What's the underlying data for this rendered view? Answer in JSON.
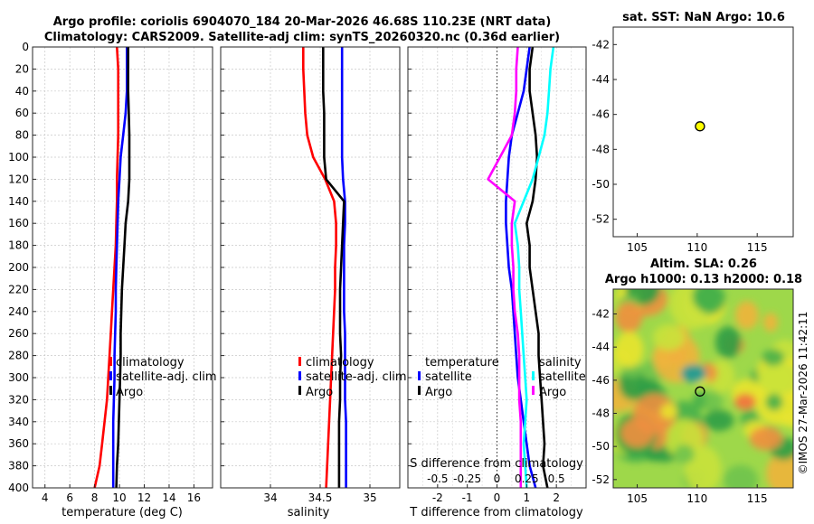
{
  "title_line1": "Argo profile: coriolis 6904070_184 20-Mar-2026 46.68S 110.23E (NRT data)",
  "title_line2": "Climatology: CARS2009. Satellite-adj clim: synTS_20260320.nc (0.36d earlier)",
  "watermark": "©IMOS 27-Mar-2026 11:42:11",
  "colors": {
    "clim": "#ff0000",
    "sat": "#0000ff",
    "argo": "#000000",
    "salt_diff": "#ff00ff",
    "salt_sat": "#00ffff"
  },
  "chart_data": [
    {
      "id": "temperature",
      "type": "line",
      "xlabel": "temperature (deg C)",
      "ylabel": "",
      "xlim": [
        3,
        17.5
      ],
      "ylim": [
        400,
        0
      ],
      "xticks": [
        4,
        6,
        8,
        10,
        12,
        14,
        16
      ],
      "yticks": [
        0,
        20,
        40,
        60,
        80,
        100,
        120,
        140,
        160,
        180,
        200,
        220,
        240,
        260,
        280,
        300,
        320,
        340,
        360,
        380,
        400
      ],
      "grid": true,
      "legend": [
        "climatology",
        "satellite-adj. clim",
        "Argo"
      ],
      "series": [
        {
          "name": "climatology",
          "color": "#ff0000",
          "x": [
            9.8,
            9.9,
            9.9,
            9.9,
            9.9,
            9.85,
            9.8,
            9.8,
            9.75,
            9.7,
            9.6,
            9.5,
            9.4,
            9.3,
            9.2,
            9.1,
            9.0,
            8.8,
            8.6,
            8.4,
            8.0
          ],
          "y": [
            0,
            20,
            40,
            60,
            80,
            100,
            120,
            140,
            160,
            180,
            200,
            220,
            240,
            260,
            280,
            300,
            320,
            340,
            360,
            380,
            400
          ]
        },
        {
          "name": "satellite-adj. clim",
          "color": "#0000ff",
          "x": [
            10.6,
            10.6,
            10.6,
            10.5,
            10.3,
            10.1,
            10.0,
            9.9,
            9.85,
            9.8,
            9.75,
            9.7,
            9.7,
            9.65,
            9.6,
            9.6,
            9.55,
            9.5,
            9.5,
            9.5,
            9.5
          ],
          "y": [
            0,
            20,
            40,
            60,
            80,
            100,
            120,
            140,
            160,
            180,
            200,
            220,
            240,
            260,
            280,
            300,
            320,
            340,
            360,
            380,
            400
          ]
        },
        {
          "name": "Argo",
          "color": "#000000",
          "x": [
            10.7,
            10.7,
            10.7,
            10.75,
            10.8,
            10.8,
            10.8,
            10.7,
            10.5,
            10.4,
            10.3,
            10.2,
            10.15,
            10.1,
            10.1,
            10.05,
            10.0,
            9.95,
            9.9,
            9.8,
            9.75
          ],
          "y": [
            0,
            20,
            40,
            60,
            80,
            100,
            120,
            140,
            160,
            180,
            200,
            220,
            240,
            260,
            280,
            300,
            320,
            340,
            360,
            380,
            400
          ]
        }
      ]
    },
    {
      "id": "salinity",
      "type": "line",
      "xlabel": "salinity",
      "ylabel": "",
      "xlim": [
        33.5,
        35.3
      ],
      "ylim": [
        400,
        0
      ],
      "xticks": [
        34,
        34.5,
        35
      ],
      "grid": true,
      "legend": [
        "climatology",
        "satellite-adj. clim",
        "Argo"
      ],
      "series": [
        {
          "name": "climatology",
          "color": "#ff0000",
          "x": [
            34.33,
            34.33,
            34.34,
            34.35,
            34.37,
            34.43,
            34.55,
            34.64,
            34.66,
            34.66,
            34.65,
            34.65,
            34.64,
            34.63,
            34.62,
            34.61,
            34.6,
            34.59,
            34.58,
            34.57,
            34.56
          ],
          "y": [
            0,
            20,
            40,
            60,
            80,
            100,
            120,
            140,
            160,
            180,
            200,
            220,
            240,
            260,
            280,
            300,
            320,
            340,
            360,
            380,
            400
          ]
        },
        {
          "name": "satellite-adj. clim",
          "color": "#0000ff",
          "x": [
            34.72,
            34.72,
            34.72,
            34.72,
            34.72,
            34.72,
            34.73,
            34.75,
            34.75,
            34.74,
            34.74,
            34.74,
            34.74,
            34.75,
            34.75,
            34.75,
            34.75,
            34.76,
            34.76,
            34.76,
            34.76
          ],
          "y": [
            0,
            20,
            40,
            60,
            80,
            100,
            120,
            140,
            160,
            180,
            200,
            220,
            240,
            260,
            280,
            300,
            320,
            340,
            360,
            380,
            400
          ]
        },
        {
          "name": "Argo",
          "color": "#000000",
          "x": [
            34.53,
            34.53,
            34.53,
            34.54,
            34.54,
            34.54,
            34.56,
            34.74,
            34.73,
            34.72,
            34.71,
            34.7,
            34.7,
            34.7,
            34.71,
            34.7,
            34.7,
            34.69,
            34.69,
            34.69,
            34.69
          ],
          "y": [
            0,
            20,
            40,
            60,
            80,
            100,
            120,
            140,
            160,
            180,
            200,
            220,
            240,
            260,
            280,
            300,
            320,
            340,
            360,
            380,
            400
          ]
        }
      ]
    },
    {
      "id": "difference",
      "type": "line",
      "xlabel": "T difference from climatology",
      "top_label": "S difference from climatology",
      "xlim": [
        -3,
        3
      ],
      "ylim": [
        400,
        0
      ],
      "xticks": [
        -2,
        -1,
        0,
        1,
        2
      ],
      "top_ticks": [
        "-0.5",
        "-0.25",
        "0",
        "0.25",
        "0.5"
      ],
      "grid": true,
      "legend_titles": [
        "temperature",
        "salinity"
      ],
      "legend": [
        "satellite",
        "Argo",
        "satellite",
        "Argo"
      ],
      "series": [
        {
          "name": "temperature satellite",
          "color": "#0000ff",
          "x": [
            1.1,
            1.0,
            0.9,
            0.7,
            0.5,
            0.4,
            0.35,
            0.3,
            0.3,
            0.35,
            0.4,
            0.5,
            0.55,
            0.6,
            0.65,
            0.7,
            0.8,
            0.9,
            1.0,
            1.1,
            1.3
          ],
          "y": [
            0,
            20,
            40,
            60,
            80,
            100,
            120,
            140,
            160,
            180,
            200,
            220,
            240,
            260,
            280,
            300,
            320,
            340,
            360,
            380,
            400
          ]
        },
        {
          "name": "temperature Argo",
          "color": "#000000",
          "x": [
            1.2,
            1.1,
            1.1,
            1.2,
            1.3,
            1.35,
            1.3,
            1.2,
            1.0,
            1.1,
            1.1,
            1.2,
            1.3,
            1.4,
            1.4,
            1.45,
            1.5,
            1.55,
            1.6,
            1.55,
            1.7
          ],
          "y": [
            0,
            20,
            40,
            60,
            80,
            100,
            120,
            140,
            160,
            180,
            200,
            220,
            240,
            260,
            280,
            300,
            320,
            340,
            360,
            380,
            400
          ]
        },
        {
          "name": "salinity satellite",
          "color": "#00ffff",
          "x": [
            1.9,
            1.8,
            1.75,
            1.7,
            1.6,
            1.4,
            1.2,
            0.9,
            0.6,
            0.7,
            0.75,
            0.75,
            0.8,
            0.85,
            0.9,
            0.95,
            1.0,
            0.95,
            0.9,
            0.95,
            1.0
          ],
          "y": [
            0,
            20,
            40,
            60,
            80,
            100,
            120,
            140,
            160,
            180,
            200,
            220,
            240,
            260,
            280,
            300,
            320,
            340,
            360,
            380,
            400
          ]
        },
        {
          "name": "salinity Argo",
          "color": "#ff00ff",
          "x": [
            0.7,
            0.65,
            0.65,
            0.6,
            0.5,
            0.1,
            -0.3,
            0.6,
            0.5,
            0.5,
            0.55,
            0.55,
            0.6,
            0.7,
            0.75,
            0.75,
            0.75,
            0.8,
            0.8,
            0.8,
            0.8
          ],
          "y": [
            0,
            20,
            40,
            60,
            80,
            100,
            120,
            140,
            160,
            180,
            200,
            220,
            240,
            260,
            280,
            300,
            320,
            340,
            360,
            380,
            400
          ]
        }
      ]
    },
    {
      "id": "sst_map",
      "type": "scatter",
      "title": "sat. SST: NaN Argo: 10.6",
      "xlim": [
        103,
        118
      ],
      "ylim": [
        -53,
        -41
      ],
      "xticks": [
        105,
        110,
        115
      ],
      "yticks": [
        -42,
        -44,
        -46,
        -48,
        -50,
        -52
      ],
      "points": [
        {
          "lon": 110.23,
          "lat": -46.68
        }
      ]
    },
    {
      "id": "sla_map",
      "type": "heatmap",
      "title_line1": "Altim. SLA: 0.26",
      "title_line2": "Argo h1000: 0.13 h2000: 0.18",
      "xlim": [
        103,
        118
      ],
      "ylim": [
        -52.5,
        -40.5
      ],
      "xticks": [
        105,
        110,
        115
      ],
      "yticks": [
        -42,
        -44,
        -46,
        -48,
        -50,
        -52
      ],
      "points": [
        {
          "lon": 110.23,
          "lat": -46.68
        }
      ]
    }
  ]
}
